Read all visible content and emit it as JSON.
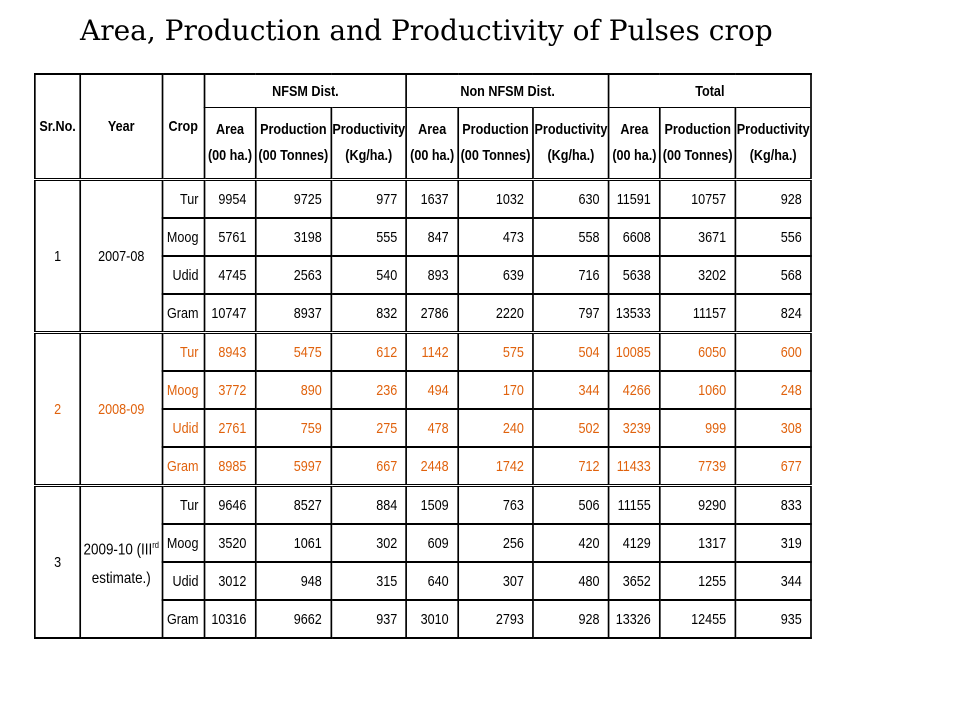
{
  "title": "Area, Production and Productivity of Pulses crop",
  "accent_color": "#e0620d",
  "header": {
    "sr": "Sr.No.",
    "year": "Year",
    "crop": "Crop",
    "groups": [
      "NFSM Dist.",
      "Non NFSM Dist.",
      "Total"
    ],
    "sub": {
      "area_1": "Area",
      "area_2": "(00 ha.)",
      "prod_1": "Production",
      "prod_2": "(00 Tonnes)",
      "yield_1": "Productivity",
      "yield_2": "(Kg/ha.)"
    }
  },
  "groups": [
    {
      "sr": "1",
      "year": "2007-08",
      "year_sup": "",
      "rows": [
        {
          "crop": "Tur",
          "v": [
            "9954",
            "9725",
            "977",
            "1637",
            "1032",
            "630",
            "11591",
            "10757",
            "928"
          ]
        },
        {
          "crop": "Moog",
          "v": [
            "5761",
            "3198",
            "555",
            "847",
            "473",
            "558",
            "6608",
            "3671",
            "556"
          ]
        },
        {
          "crop": "Udid",
          "v": [
            "4745",
            "2563",
            "540",
            "893",
            "639",
            "716",
            "5638",
            "3202",
            "568"
          ]
        },
        {
          "crop": "Gram",
          "v": [
            "10747",
            "8937",
            "832",
            "2786",
            "2220",
            "797",
            "13533",
            "11157",
            "824"
          ]
        }
      ]
    },
    {
      "sr": "2",
      "year": "2008-09",
      "year_sup": "",
      "rows": [
        {
          "crop": "Tur",
          "v": [
            "8943",
            "5475",
            "612",
            "1142",
            "575",
            "504",
            "10085",
            "6050",
            "600"
          ]
        },
        {
          "crop": "Moog",
          "v": [
            "3772",
            "890",
            "236",
            "494",
            "170",
            "344",
            "4266",
            "1060",
            "248"
          ]
        },
        {
          "crop": "Udid",
          "v": [
            "2761",
            "759",
            "275",
            "478",
            "240",
            "502",
            "3239",
            "999",
            "308"
          ]
        },
        {
          "crop": "Gram",
          "v": [
            "8985",
            "5997",
            "667",
            "2448",
            "1742",
            "712",
            "11433",
            "7739",
            "677"
          ]
        }
      ]
    },
    {
      "sr": "3",
      "year": "2009-10 (III",
      "year_sup": "rd",
      "year_2": "estimate.)",
      "rows": [
        {
          "crop": "Tur",
          "v": [
            "9646",
            "8527",
            "884",
            "1509",
            "763",
            "506",
            "11155",
            "9290",
            "833"
          ]
        },
        {
          "crop": "Moog",
          "v": [
            "3520",
            "1061",
            "302",
            "609",
            "256",
            "420",
            "4129",
            "1317",
            "319"
          ]
        },
        {
          "crop": "Udid",
          "v": [
            "3012",
            "948",
            "315",
            "640",
            "307",
            "480",
            "3652",
            "1255",
            "344"
          ]
        },
        {
          "crop": "Gram",
          "v": [
            "10316",
            "9662",
            "937",
            "3010",
            "2793",
            "928",
            "13326",
            "12455",
            "935"
          ]
        }
      ]
    }
  ]
}
